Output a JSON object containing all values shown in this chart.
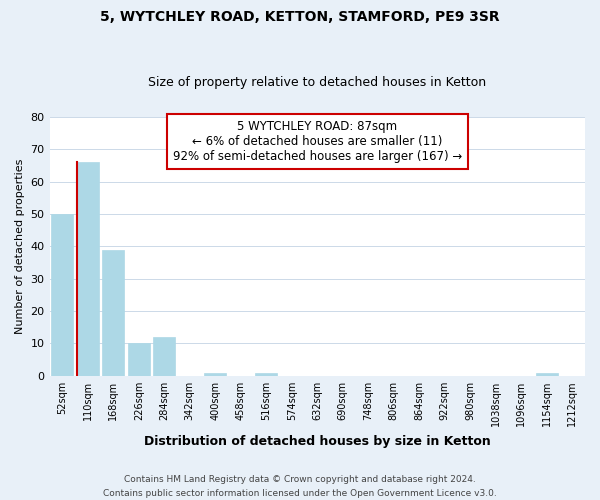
{
  "title1": "5, WYTCHLEY ROAD, KETTON, STAMFORD, PE9 3SR",
  "title2": "Size of property relative to detached houses in Ketton",
  "xlabel": "Distribution of detached houses by size in Ketton",
  "ylabel": "Number of detached properties",
  "bar_labels": [
    "52sqm",
    "110sqm",
    "168sqm",
    "226sqm",
    "284sqm",
    "342sqm",
    "400sqm",
    "458sqm",
    "516sqm",
    "574sqm",
    "632sqm",
    "690sqm",
    "748sqm",
    "806sqm",
    "864sqm",
    "922sqm",
    "980sqm",
    "1038sqm",
    "1096sqm",
    "1154sqm",
    "1212sqm"
  ],
  "bar_values": [
    50,
    66,
    39,
    10,
    12,
    0,
    1,
    0,
    1,
    0,
    0,
    0,
    0,
    0,
    0,
    0,
    0,
    0,
    0,
    1,
    0
  ],
  "highlight_bar_index": 1,
  "bar_color_normal": "#add8e6",
  "bar_edge_color_highlight": "#cc0000",
  "ylim": [
    0,
    80
  ],
  "yticks": [
    0,
    10,
    20,
    30,
    40,
    50,
    60,
    70,
    80
  ],
  "annotation_title": "5 WYTCHLEY ROAD: 87sqm",
  "annotation_line1": "← 6% of detached houses are smaller (11)",
  "annotation_line2": "92% of semi-detached houses are larger (167) →",
  "footer_line1": "Contains HM Land Registry data © Crown copyright and database right 2024.",
  "footer_line2": "Contains public sector information licensed under the Open Government Licence v3.0.",
  "grid_color": "#ccd9e8",
  "background_color": "#e8f0f8",
  "plot_bg_color": "#ffffff"
}
